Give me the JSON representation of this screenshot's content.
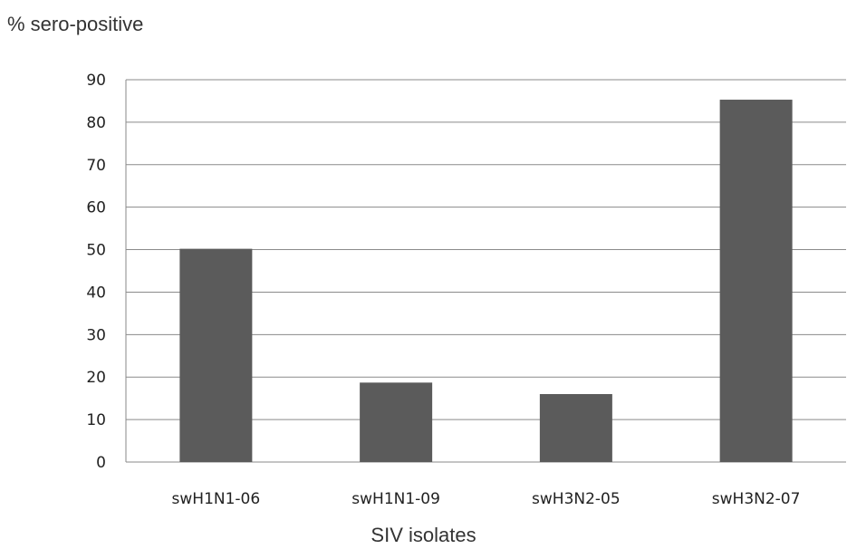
{
  "chart_data": {
    "type": "bar",
    "categories": [
      "swH1N1-06",
      "swH1N1-09",
      "swH3N2-05",
      "swH3N2-07"
    ],
    "values": [
      50.2,
      18.7,
      16.0,
      85.3
    ],
    "ylabel": "% sero-positive",
    "xlabel": "SIV isolates",
    "ylim": [
      0,
      90
    ],
    "yticks": [
      0,
      10,
      20,
      30,
      40,
      50,
      60,
      70,
      80,
      90
    ],
    "grid": true,
    "bar_color": "#5b5b5b",
    "grid_color": "#8a8a8a"
  }
}
